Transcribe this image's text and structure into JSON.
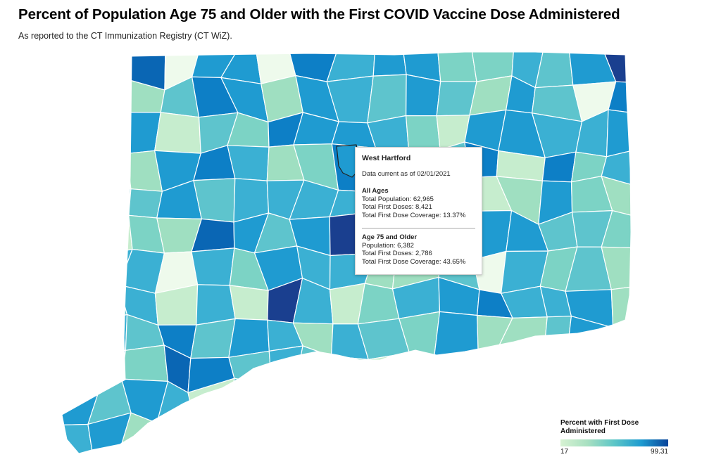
{
  "header": {
    "title": "Percent of Population Age 75 and Older with the First COVID Vaccine Dose Administered",
    "subtitle": "As reported to the CT Immunization Registry (CT WiZ)."
  },
  "tooltip": {
    "town": "West Hartford",
    "data_current": "Data current as of 02/01/2021",
    "all_ages": {
      "heading": "All Ages",
      "total_population": "Total Population: 62,965",
      "total_first_doses": "Total First Doses: 8,421",
      "coverage": "Total First Dose Coverage: 13.37%"
    },
    "age_75": {
      "heading": "Age 75 and Older",
      "population": "Population: 6,382",
      "first_doses": "Total First Doses: 2,786",
      "coverage": "Total First Dose Coverage: 43.65%"
    }
  },
  "legend": {
    "title": "Percent with First Dose Administered",
    "min": "17",
    "max": "99.31",
    "colors": [
      "#d7f2d2",
      "#a8e0c1",
      "#5cc6c7",
      "#1d9bd0",
      "#08449a"
    ]
  },
  "map": {
    "hovered_town": "West Hartford",
    "palette": [
      "#eefaec",
      "#c6edce",
      "#9fdfc1",
      "#7cd3c5",
      "#5ec4cd",
      "#3bb0d3",
      "#1f9bd1",
      "#0d7fc6",
      "#0a66b4",
      "#1a3f8f"
    ]
  }
}
